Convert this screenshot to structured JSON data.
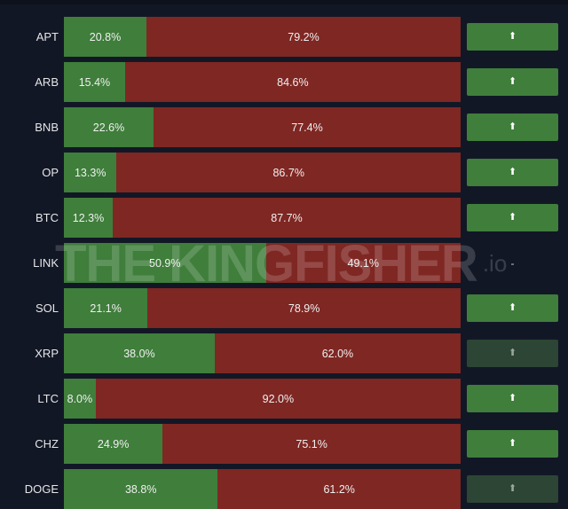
{
  "watermark": {
    "brand": "THE KINGFISHER",
    "suffix": ".io"
  },
  "colors": {
    "background": "#121726",
    "long": "#3f7e3b",
    "short": "#7f2723",
    "signal": "#3f7e3b",
    "signal_dim": "#2c4535"
  },
  "rows": [
    {
      "symbol": "APT",
      "long_pct": 20.8,
      "short_pct": 79.2,
      "long_label": "20.8%",
      "short_label": "79.2%",
      "signal": "up",
      "signal_icon": "arrow-up-icon"
    },
    {
      "symbol": "ARB",
      "long_pct": 15.4,
      "short_pct": 84.6,
      "long_label": "15.4%",
      "short_label": "84.6%",
      "signal": "up",
      "signal_icon": "arrow-up-icon"
    },
    {
      "symbol": "BNB",
      "long_pct": 22.6,
      "short_pct": 77.4,
      "long_label": "22.6%",
      "short_label": "77.4%",
      "signal": "up",
      "signal_icon": "arrow-up-icon"
    },
    {
      "symbol": "OP",
      "long_pct": 13.3,
      "short_pct": 86.7,
      "long_label": "13.3%",
      "short_label": "86.7%",
      "signal": "up",
      "signal_icon": "arrow-up-icon"
    },
    {
      "symbol": "BTC",
      "long_pct": 12.3,
      "short_pct": 87.7,
      "long_label": "12.3%",
      "short_label": "87.7%",
      "signal": "up",
      "signal_icon": "arrow-up-icon"
    },
    {
      "symbol": "LINK",
      "long_pct": 50.9,
      "short_pct": 49.1,
      "long_label": "50.9%",
      "short_label": "49.1%",
      "signal": "none",
      "signal_text": "-"
    },
    {
      "symbol": "SOL",
      "long_pct": 21.1,
      "short_pct": 78.9,
      "long_label": "21.1%",
      "short_label": "78.9%",
      "signal": "up",
      "signal_icon": "arrow-up-icon"
    },
    {
      "symbol": "XRP",
      "long_pct": 38.0,
      "short_pct": 62.0,
      "long_label": "38.0%",
      "short_label": "62.0%",
      "signal": "dim",
      "signal_icon": "arrow-up-icon"
    },
    {
      "symbol": "LTC",
      "long_pct": 8.0,
      "short_pct": 92.0,
      "long_label": "8.0%",
      "short_label": "92.0%",
      "signal": "up",
      "signal_icon": "arrow-up-icon"
    },
    {
      "symbol": "CHZ",
      "long_pct": 24.9,
      "short_pct": 75.1,
      "long_label": "24.9%",
      "short_label": "75.1%",
      "signal": "up",
      "signal_icon": "arrow-up-icon"
    },
    {
      "symbol": "DOGE",
      "long_pct": 38.8,
      "short_pct": 61.2,
      "long_label": "38.8%",
      "short_label": "61.2%",
      "signal": "dim",
      "signal_icon": "arrow-up-icon"
    }
  ]
}
